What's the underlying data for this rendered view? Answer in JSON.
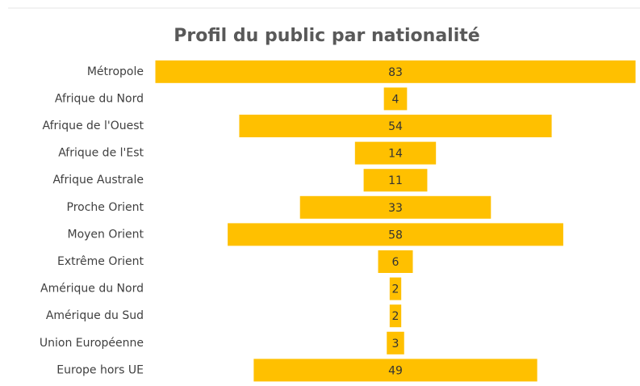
{
  "chart_data": {
    "type": "funnel",
    "title": "Profil du public par nationalité",
    "categories": [
      "Métropole",
      "Afrique du Nord",
      "Afrique de l'Ouest",
      "Afrique de l'Est",
      "Afrique Australe",
      "Proche Orient",
      "Moyen Orient",
      "Extrême Orient",
      "Amérique du Nord",
      "Amérique du Sud",
      "Union Européenne",
      "Europe hors UE"
    ],
    "values": [
      83,
      4,
      54,
      14,
      11,
      33,
      58,
      6,
      2,
      2,
      3,
      49
    ],
    "color": "#ffc000"
  }
}
